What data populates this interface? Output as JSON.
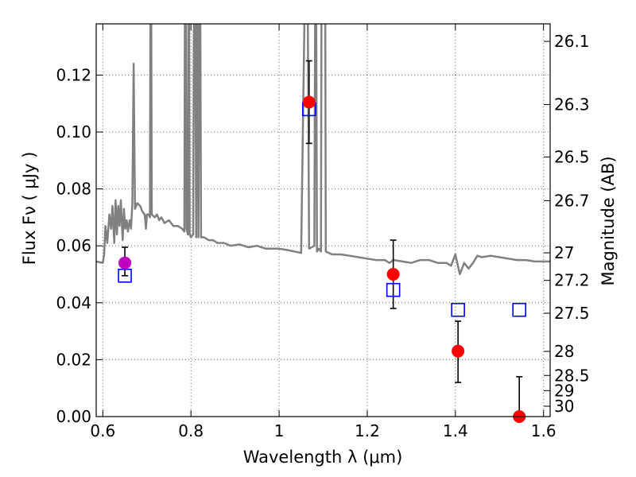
{
  "chart_data": {
    "type": "scatter",
    "xlabel": "Wavelength  λ (μm)",
    "ylabel": "Flux  Fν  ( μJy )",
    "ylabel_right": "Magnitude (AB)",
    "xlim": [
      0.585,
      1.615
    ],
    "ylim": [
      0.0,
      0.138
    ],
    "grid": true,
    "x_ticks": [
      {
        "value": 0.6,
        "label": "0.6"
      },
      {
        "value": 0.8,
        "label": "0.8"
      },
      {
        "value": 1.0,
        "label": "1"
      },
      {
        "value": 1.2,
        "label": "1.2"
      },
      {
        "value": 1.4,
        "label": "1.4"
      },
      {
        "value": 1.6,
        "label": "1.6"
      }
    ],
    "y_ticks": [
      {
        "value": 0.0,
        "label": "0.00"
      },
      {
        "value": 0.02,
        "label": "0.02"
      },
      {
        "value": 0.04,
        "label": "0.04"
      },
      {
        "value": 0.06,
        "label": "0.06"
      },
      {
        "value": 0.08,
        "label": "0.08"
      },
      {
        "value": 0.1,
        "label": "0.10"
      },
      {
        "value": 0.12,
        "label": "0.12"
      }
    ],
    "right_ticks": [
      {
        "mag": 26.1,
        "label": "26.1"
      },
      {
        "mag": 26.3,
        "label": "26.3"
      },
      {
        "mag": 26.5,
        "label": "26.5"
      },
      {
        "mag": 26.7,
        "label": "26.7"
      },
      {
        "mag": 27.0,
        "label": "27"
      },
      {
        "mag": 27.2,
        "label": "27.2"
      },
      {
        "mag": 27.5,
        "label": "27.5"
      },
      {
        "mag": 28.0,
        "label": "28"
      },
      {
        "mag": 28.5,
        "label": "28.5"
      },
      {
        "mag": 29.0,
        "label": "29"
      },
      {
        "mag": 30.0,
        "label": "30"
      }
    ],
    "series": [
      {
        "kind": "line",
        "color": "#808080",
        "points": [
          [
            0.585,
            0.0545
          ],
          [
            0.6,
            0.054
          ],
          [
            0.603,
            0.057
          ],
          [
            0.606,
            0.067
          ],
          [
            0.61,
            0.061
          ],
          [
            0.615,
            0.071
          ],
          [
            0.619,
            0.066
          ],
          [
            0.622,
            0.074
          ],
          [
            0.626,
            0.061
          ],
          [
            0.629,
            0.076
          ],
          [
            0.632,
            0.064
          ],
          [
            0.635,
            0.074
          ],
          [
            0.638,
            0.067
          ],
          [
            0.641,
            0.076
          ],
          [
            0.645,
            0.062
          ],
          [
            0.648,
            0.073
          ],
          [
            0.651,
            0.066
          ],
          [
            0.654,
            0.069
          ],
          [
            0.657,
            0.065
          ],
          [
            0.661,
            0.069
          ],
          [
            0.664,
            0.066
          ],
          [
            0.667,
            0.075
          ],
          [
            0.67,
            0.124
          ],
          [
            0.673,
            0.073
          ],
          [
            0.678,
            0.075
          ],
          [
            0.685,
            0.074
          ],
          [
            0.69,
            0.072
          ],
          [
            0.695,
            0.071
          ],
          [
            0.698,
            0.066
          ],
          [
            0.7,
            0.071
          ],
          [
            0.704,
            0.071
          ],
          [
            0.707,
            0.07
          ],
          [
            0.709,
            0.2
          ],
          [
            0.711,
            0.071
          ],
          [
            0.718,
            0.07
          ],
          [
            0.723,
            0.071
          ],
          [
            0.728,
            0.069
          ],
          [
            0.733,
            0.07
          ],
          [
            0.74,
            0.068
          ],
          [
            0.75,
            0.069
          ],
          [
            0.76,
            0.067
          ],
          [
            0.77,
            0.067
          ],
          [
            0.78,
            0.066
          ],
          [
            0.785,
            0.065
          ],
          [
            0.787,
            0.2
          ],
          [
            0.79,
            0.066
          ],
          [
            0.793,
            0.064
          ],
          [
            0.795,
            0.2
          ],
          [
            0.797,
            0.064
          ],
          [
            0.8,
            0.063
          ],
          [
            0.805,
            0.064
          ],
          [
            0.808,
            0.2
          ],
          [
            0.812,
            0.063
          ],
          [
            0.815,
            0.2
          ],
          [
            0.817,
            0.063
          ],
          [
            0.82,
            0.2
          ],
          [
            0.823,
            0.063
          ],
          [
            0.83,
            0.063
          ],
          [
            0.84,
            0.062
          ],
          [
            0.85,
            0.062
          ],
          [
            0.86,
            0.061
          ],
          [
            0.875,
            0.061
          ],
          [
            0.89,
            0.06
          ],
          [
            0.91,
            0.0605
          ],
          [
            0.93,
            0.0595
          ],
          [
            0.95,
            0.06
          ],
          [
            0.97,
            0.059
          ],
          [
            1.0,
            0.059
          ],
          [
            1.02,
            0.0585
          ],
          [
            1.05,
            0.0575
          ],
          [
            1.063,
            0.2
          ],
          [
            1.068,
            0.059
          ],
          [
            1.08,
            0.06
          ],
          [
            1.083,
            0.2
          ],
          [
            1.086,
            0.058
          ],
          [
            1.09,
            0.059
          ],
          [
            1.095,
            0.058
          ],
          [
            1.097,
            0.2
          ],
          [
            1.104,
            0.2
          ],
          [
            1.106,
            0.058
          ],
          [
            1.12,
            0.057
          ],
          [
            1.14,
            0.057
          ],
          [
            1.16,
            0.0565
          ],
          [
            1.18,
            0.056
          ],
          [
            1.2,
            0.0555
          ],
          [
            1.22,
            0.055
          ],
          [
            1.24,
            0.055
          ],
          [
            1.25,
            0.054
          ],
          [
            1.26,
            0.055
          ],
          [
            1.28,
            0.0545
          ],
          [
            1.3,
            0.054
          ],
          [
            1.32,
            0.055
          ],
          [
            1.34,
            0.055
          ],
          [
            1.36,
            0.054
          ],
          [
            1.38,
            0.054
          ],
          [
            1.39,
            0.053
          ],
          [
            1.4,
            0.057
          ],
          [
            1.41,
            0.05
          ],
          [
            1.42,
            0.054
          ],
          [
            1.43,
            0.052
          ],
          [
            1.44,
            0.054
          ],
          [
            1.45,
            0.0565
          ],
          [
            1.46,
            0.056
          ],
          [
            1.48,
            0.0565
          ],
          [
            1.5,
            0.056
          ],
          [
            1.52,
            0.0555
          ],
          [
            1.54,
            0.055
          ],
          [
            1.56,
            0.055
          ],
          [
            1.58,
            0.0545
          ],
          [
            1.615,
            0.0545
          ]
        ]
      },
      {
        "kind": "points",
        "marker": "circle",
        "points": [
          {
            "x": 0.65,
            "y": 0.054,
            "err_low": 0.0045,
            "err_high": 0.0055,
            "color": "#bf00bf"
          },
          {
            "x": 1.068,
            "y": 0.1105,
            "err_low": 0.0145,
            "err_high": 0.0145,
            "color": "#ff0000"
          },
          {
            "x": 1.259,
            "y": 0.05,
            "err_low": 0.012,
            "err_high": 0.012,
            "color": "#ff0000"
          },
          {
            "x": 1.406,
            "y": 0.023,
            "err_low": 0.011,
            "err_high": 0.0105,
            "color": "#ff0000"
          },
          {
            "x": 1.545,
            "y": 0.0,
            "err_low": 0.0,
            "err_high": 0.014,
            "color": "#ff0000"
          }
        ]
      },
      {
        "kind": "points",
        "marker": "square",
        "color": "#0000ff",
        "points": [
          {
            "x": 0.65,
            "y": 0.0495
          },
          {
            "x": 1.068,
            "y": 0.108
          },
          {
            "x": 1.259,
            "y": 0.0445
          },
          {
            "x": 1.406,
            "y": 0.0375
          },
          {
            "x": 1.545,
            "y": 0.0375
          }
        ]
      }
    ]
  }
}
